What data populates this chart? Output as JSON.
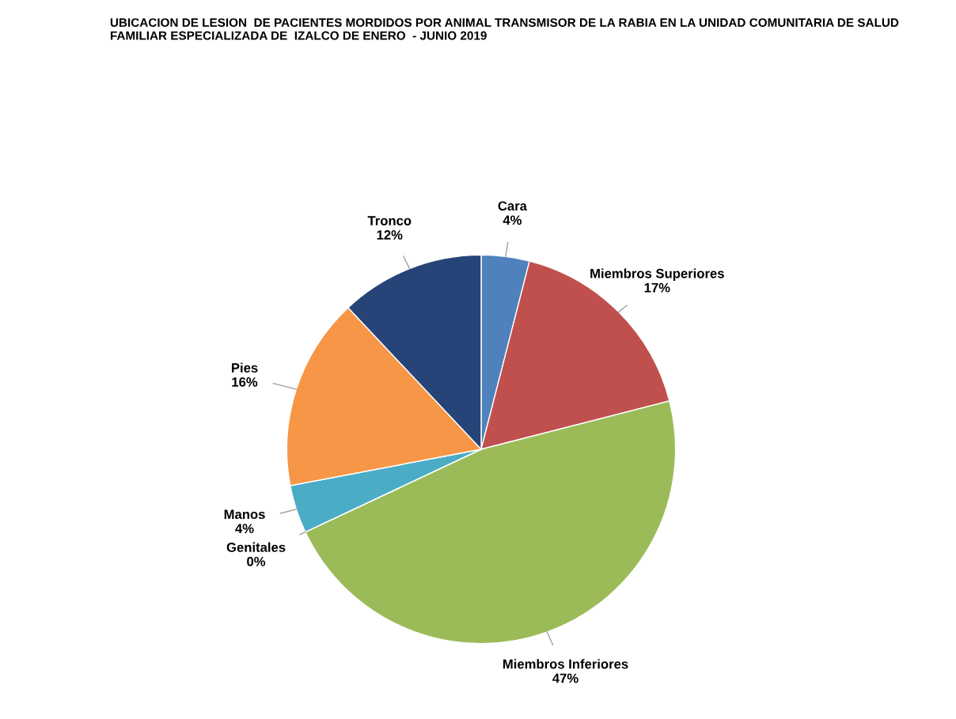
{
  "chart_data": {
    "type": "pie",
    "title": "UBICACION DE LESION  DE PACIENTES MORDIDOS POR ANIMAL TRANSMISOR DE LA RABIA EN LA UNIDAD COMUNITARIA DE SALUD FAMILIAR ESPECIALIZADA DE  IZALCO DE ENERO  - JUNIO 2019",
    "categories": [
      "Cara",
      "Miembros Superiores",
      "Miembros Inferiores",
      "Genitales",
      "Manos",
      "Pies",
      "Tronco"
    ],
    "values": [
      4,
      17,
      47,
      0,
      4,
      16,
      12
    ],
    "colors": [
      "#4f81bd",
      "#c0504d",
      "#9bbb59",
      "#8064a2",
      "#4bacc6",
      "#f79646",
      "#264478"
    ],
    "value_labels": [
      "4%",
      "17%",
      "47%",
      "0%",
      "4%",
      "16%",
      "12%"
    ]
  }
}
